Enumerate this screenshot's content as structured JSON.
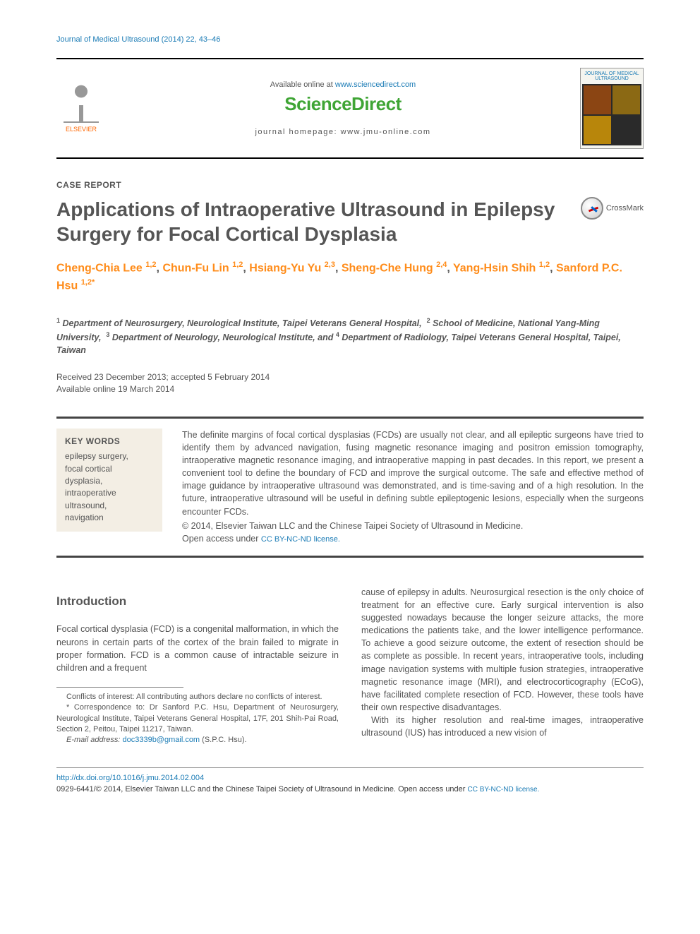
{
  "journal": {
    "reference": "Journal of Medical Ultrasound (2014) 22, 43–46",
    "available_text": "Available online at ",
    "available_link": "www.sciencedirect.com",
    "brand": "ScienceDirect",
    "homepage_label": "journal homepage: ",
    "homepage_url": "www.jmu-online.com",
    "publisher_name": "ELSEVIER",
    "cover_title": "JOURNAL OF MEDICAL ULTRASOUND"
  },
  "article": {
    "type": "CASE REPORT",
    "title": "Applications of Intraoperative Ultrasound in Epilepsy Surgery for Focal Cortical Dysplasia",
    "crossmark_label": "CrossMark",
    "authors_html": "Cheng-Chia Lee <sup>1,2</sup>, Chun-Fu Lin <sup>1,2</sup>, Hsiang-Yu Yu <sup>2,3</sup>, Sheng-Che Hung <sup>2,4</sup>, Yang-Hsin Shih <sup>1,2</sup>, Sanford P.C. Hsu <sup>1,2*</sup>",
    "affiliations_html": "<sup>1</sup> Department of Neurosurgery, Neurological Institute, Taipei Veterans General Hospital, &nbsp;<sup>2</sup> School of Medicine, National Yang-Ming University, &nbsp;<sup>3</sup> Department of Neurology, Neurological Institute, and <sup>4</sup> Department of Radiology, Taipei Veterans General Hospital, Taipei, Taiwan",
    "dates_line1": "Received 23 December 2013; accepted 5 February 2014",
    "dates_line2": "Available online 19 March 2014"
  },
  "keywords": {
    "title": "KEY WORDS",
    "list": "epilepsy surgery,\nfocal cortical\n  dysplasia,\nintraoperative\n  ultrasound,\nnavigation"
  },
  "abstract": {
    "text": "The definite margins of focal cortical dysplasias (FCDs) are usually not clear, and all epileptic surgeons have tried to identify them by advanced navigation, fusing magnetic resonance imaging and positron emission tomography, intraoperative magnetic resonance imaging, and intraoperative mapping in past decades. In this report, we present a convenient tool to define the boundary of FCD and improve the surgical outcome. The safe and effective method of image guidance by intraoperative ultrasound was demonstrated, and is time-saving and of a high resolution. In the future, intraoperative ultrasound will be useful in defining subtle epileptogenic lesions, especially when the surgeons encounter FCDs.",
    "copyright": "© 2014, Elsevier Taiwan LLC and the Chinese Taipei Society of Ultrasound in Medicine.",
    "license_prefix": "Open access under ",
    "license_link": "CC BY-NC-ND license."
  },
  "body": {
    "section_title": "Introduction",
    "para1": "Focal cortical dysplasia (FCD) is a congenital malformation, in which the neurons in certain parts of the cortex of the brain failed to migrate in proper formation. FCD is a common cause of intractable seizure in children and a frequent",
    "para1_cont": "cause of epilepsy in adults. Neurosurgical resection is the only choice of treatment for an effective cure. Early surgical intervention is also suggested nowadays because the longer seizure attacks, the more medications the patients take, and the lower intelligence performance. To achieve a good seizure outcome, the extent of resection should be as complete as possible. In recent years, intraoperative tools, including image navigation systems with multiple fusion strategies, intraoperative magnetic resonance image (MRI), and electrocorticography (ECoG), have facilitated complete resection of FCD. However, these tools have their own respective disadvantages.",
    "para2": "With its higher resolution and real-time images, intraoperative ultrasound (IUS) has introduced a new vision of"
  },
  "footnotes": {
    "conflicts": "Conflicts of interest: All contributing authors declare no conflicts of interest.",
    "correspondence": "* Correspondence to: Dr Sanford P.C. Hsu, Department of Neurosurgery, Neurological Institute, Taipei Veterans General Hospital, 17F, 201 Shih-Pai Road, Section 2, Peitou, Taipei 11217, Taiwan.",
    "email_label": "E-mail address: ",
    "email": "doc3339b@gmail.com",
    "email_suffix": " (S.P.C. Hsu)."
  },
  "bottom": {
    "doi": "http://dx.doi.org/10.1016/j.jmu.2014.02.004",
    "issn": "0929-6441/© 2014, Elsevier Taiwan LLC and the Chinese Taipei Society of Ultrasound in Medicine. ",
    "license_prefix": "Open access under ",
    "license_link": "CC BY-NC-ND license."
  },
  "colors": {
    "link": "#1a7bb5",
    "accent": "#ff8c1a",
    "brand_green": "#3fa535",
    "text": "#555555",
    "keywords_bg": "#f3eee4"
  }
}
